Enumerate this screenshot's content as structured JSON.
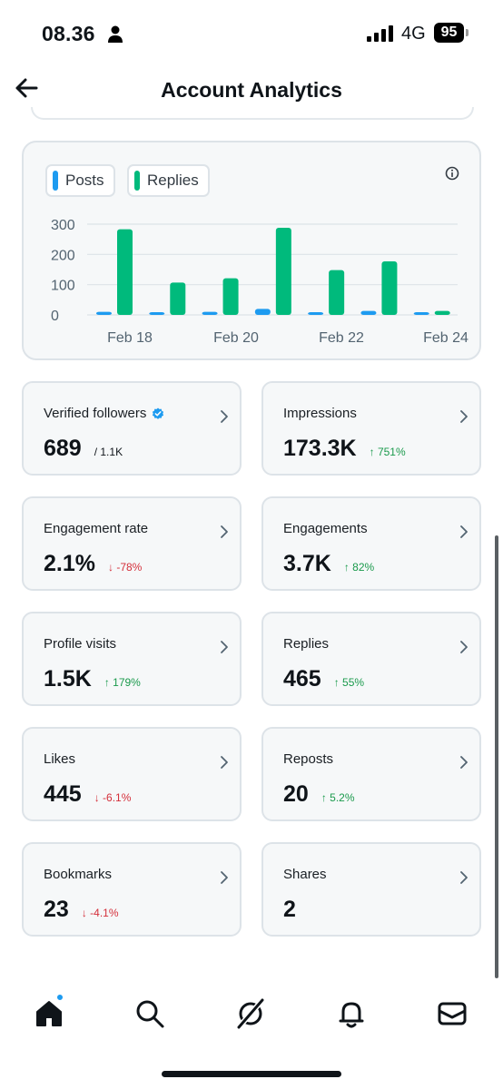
{
  "status_bar": {
    "time": "08.36",
    "network": "4G",
    "battery": "95"
  },
  "header": {
    "title": "Account Analytics"
  },
  "legend": {
    "posts_label": "Posts",
    "replies_label": "Replies"
  },
  "colors": {
    "posts": "#1d9bf0",
    "replies": "#00ba7c",
    "up": "#1a9a4c",
    "down": "#d42f3a"
  },
  "chart_data": {
    "type": "bar",
    "categories": [
      "Feb 18",
      "Feb 19",
      "Feb 20",
      "Feb 21",
      "Feb 22",
      "Feb 23",
      "Feb 24"
    ],
    "x_tick_labels": [
      "Feb 18",
      "Feb 20",
      "Feb 22",
      "Feb 24"
    ],
    "y_ticks": [
      "300",
      "200",
      "100",
      "0"
    ],
    "ylim": [
      0,
      300
    ],
    "grid": true,
    "series": [
      {
        "name": "Posts",
        "values": [
          10,
          3,
          10,
          20,
          8,
          13,
          2
        ]
      },
      {
        "name": "Replies",
        "values": [
          283,
          107,
          121,
          288,
          148,
          177,
          13
        ]
      }
    ]
  },
  "stats": [
    {
      "label": "Verified followers",
      "value": "689",
      "sub": "/ 1.1K",
      "change": "",
      "direction": "",
      "verified": true
    },
    {
      "label": "Impressions",
      "value": "173.3K",
      "sub": "",
      "change": "↑ 751%",
      "direction": "up"
    },
    {
      "label": "Engagement rate",
      "value": "2.1%",
      "sub": "",
      "change": "↓ -78%",
      "direction": "down"
    },
    {
      "label": "Engagements",
      "value": "3.7K",
      "sub": "",
      "change": "↑ 82%",
      "direction": "up"
    },
    {
      "label": "Profile visits",
      "value": "1.5K",
      "sub": "",
      "change": "↑ 179%",
      "direction": "up"
    },
    {
      "label": "Replies",
      "value": "465",
      "sub": "",
      "change": "↑ 55%",
      "direction": "up"
    },
    {
      "label": "Likes",
      "value": "445",
      "sub": "",
      "change": "↓ -6.1%",
      "direction": "down"
    },
    {
      "label": "Reposts",
      "value": "20",
      "sub": "",
      "change": "↑ 5.2%",
      "direction": "up"
    },
    {
      "label": "Bookmarks",
      "value": "23",
      "sub": "",
      "change": "↓ -4.1%",
      "direction": "down"
    },
    {
      "label": "Shares",
      "value": "2",
      "sub": "",
      "change": "",
      "direction": ""
    }
  ],
  "nav": {
    "icons": [
      "home-icon",
      "search-icon",
      "grok-icon",
      "bell-icon",
      "mail-icon"
    ],
    "active": "home-icon"
  }
}
